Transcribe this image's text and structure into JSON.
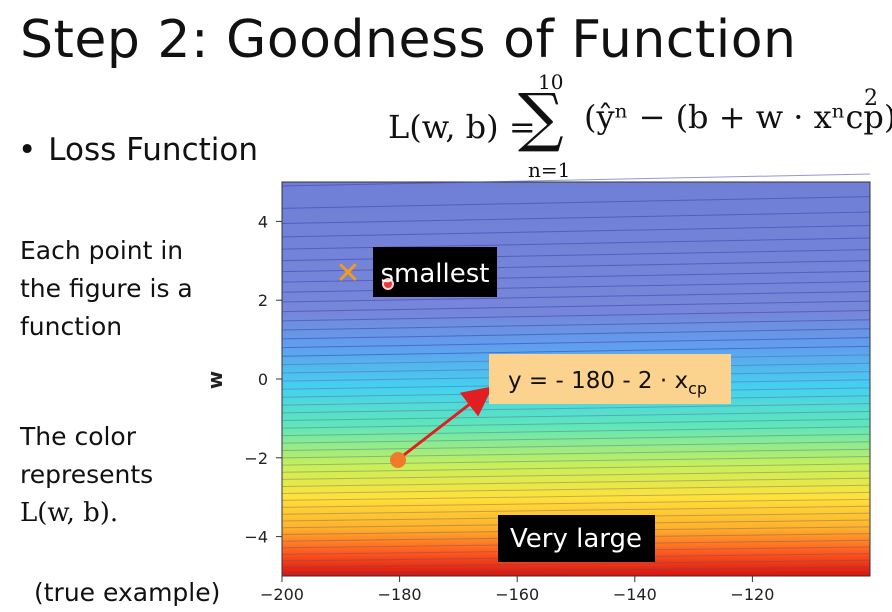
{
  "slide": {
    "title": "Step 2: Goodness of Function",
    "bullet": "Loss Function",
    "bullet_marker": "•",
    "formula": {
      "lhs": "L(w, b) =",
      "sum_upper": "10",
      "sum_lower": "n=1",
      "sigma": "∑",
      "body_text": "(ŷⁿ − (b + w · xⁿcp))",
      "power": "2"
    },
    "side_text_1": [
      "Each point in",
      "the figure is a",
      "function"
    ],
    "side_text_2": [
      "The color",
      "represents"
    ],
    "side_text_2_math": "L(w, b).",
    "example_note": "(true example)"
  },
  "annotations": {
    "smallest": "smallest",
    "equation_main": "y = - 180 - 2 · x",
    "equation_sub": "cp",
    "very_large": "Very large",
    "min_marker_color": "#f59a1e",
    "point_color": "#f07a2a",
    "arrow_color": "#e02020"
  },
  "chart_data": {
    "type": "heatmap",
    "title": "",
    "xlabel": "",
    "ylabel": "w",
    "xlim": [
      -200,
      -100
    ],
    "ylim": [
      -5,
      5
    ],
    "xticks": [
      -200,
      -180,
      -160,
      -140,
      -120
    ],
    "yticks": [
      4,
      2,
      0,
      -2,
      -4
    ],
    "colormap": [
      "#6f7fd6",
      "#5fa0ee",
      "#45d0f0",
      "#5fe7b8",
      "#c7f05a",
      "#ffe23a",
      "#ffb02a",
      "#ff5a1f",
      "#d8120e"
    ],
    "minimum_point": {
      "x": -188,
      "y": 2.7,
      "label": "smallest"
    },
    "sample_point": {
      "x": -180,
      "y": -2,
      "label": "y = - 180 - 2 · xcp"
    }
  }
}
